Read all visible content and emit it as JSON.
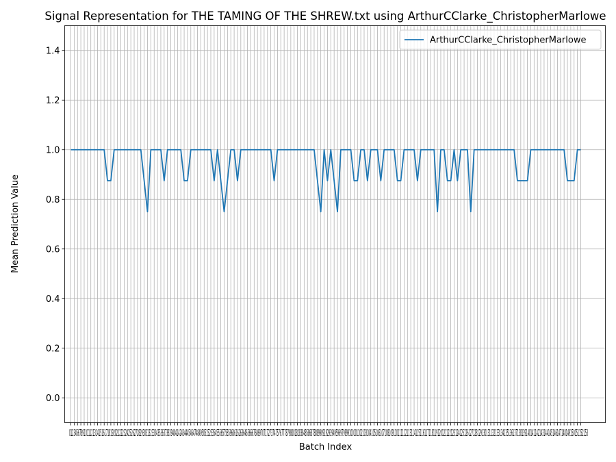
{
  "chart_data": {
    "type": "line",
    "title": "Signal Representation for THE TAMING OF THE SHREW.txt using ArthurCClarke_ChristopherMarlowe",
    "xlabel": "Batch Index",
    "ylabel": "Mean Prediction Value",
    "xlim": [
      0,
      153
    ],
    "ylim": [
      -0.1,
      1.5
    ],
    "yticks": [
      0.0,
      0.2,
      0.4,
      0.6,
      0.8,
      1.0,
      1.2,
      1.4
    ],
    "ytick_labels": [
      "0.0",
      "0.2",
      "0.4",
      "0.6",
      "0.8",
      "1.0",
      "1.2",
      "1.4"
    ],
    "xtick_labels_visible": "0123456789101112131415161718192021222324252627282930313233343536373839404142434445464748495051525354555657585960616263646566676869707172737475767778798081828384858687888990919293949596979899100101102103104105106107108109110111112113114115116117118119120121122123124125126127128129130131132133134135136137138139140141142143144145146147148149150151152153",
    "grid": true,
    "legend_position": "top-right",
    "series": [
      {
        "name": "ArthurCClarke_ChristopherMarlowe",
        "color": "#1f77b4",
        "x": [
          0,
          1,
          2,
          3,
          4,
          5,
          6,
          7,
          8,
          9,
          10,
          11,
          12,
          13,
          14,
          15,
          16,
          17,
          18,
          19,
          20,
          21,
          22,
          23,
          24,
          25,
          26,
          27,
          28,
          29,
          30,
          31,
          32,
          33,
          34,
          35,
          36,
          37,
          38,
          39,
          40,
          41,
          42,
          43,
          44,
          45,
          46,
          47,
          48,
          49,
          50,
          51,
          52,
          53,
          54,
          55,
          56,
          57,
          58,
          59,
          60,
          61,
          62,
          63,
          64,
          65,
          66,
          67,
          68,
          69,
          70,
          71,
          72,
          73,
          74,
          75,
          76,
          77,
          78,
          79,
          80,
          81,
          82,
          83,
          84,
          85,
          86,
          87,
          88,
          89,
          90,
          91,
          92,
          93,
          94,
          95,
          96,
          97,
          98,
          99,
          100,
          101,
          102,
          103,
          104,
          105,
          106,
          107,
          108,
          109,
          110,
          111,
          112,
          113,
          114,
          115,
          116,
          117,
          118,
          119,
          120,
          121,
          122,
          123,
          124,
          125,
          126,
          127,
          128,
          129,
          130,
          131,
          132,
          133,
          134,
          135,
          136,
          137,
          138,
          139,
          140,
          141,
          142,
          143,
          144,
          145,
          146,
          147,
          148,
          149,
          150,
          151,
          152,
          153
        ],
        "values": [
          1,
          1,
          1,
          1,
          1,
          1,
          1,
          1,
          1,
          1,
          1,
          0.875,
          0.875,
          1,
          1,
          1,
          1,
          1,
          1,
          1,
          1,
          1,
          0.875,
          0.75,
          1,
          1,
          1,
          1,
          0.875,
          1,
          1,
          1,
          1,
          1,
          0.875,
          0.875,
          1,
          1,
          1,
          1,
          1,
          1,
          1,
          0.875,
          1,
          0.875,
          0.75,
          0.875,
          1,
          1,
          0.875,
          1,
          1,
          1,
          1,
          1,
          1,
          1,
          1,
          1,
          1,
          0.875,
          1,
          1,
          1,
          1,
          1,
          1,
          1,
          1,
          1,
          1,
          1,
          1,
          0.875,
          0.75,
          1,
          0.875,
          1,
          0.875,
          0.75,
          1,
          1,
          1,
          1,
          0.875,
          0.875,
          1,
          1,
          0.875,
          1,
          1,
          1,
          0.875,
          1,
          1,
          1,
          1,
          0.875,
          0.875,
          1,
          1,
          1,
          1,
          0.875,
          1,
          1,
          1,
          1,
          1,
          0.75,
          1,
          1,
          0.875,
          0.875,
          1,
          0.875,
          1,
          1,
          1,
          0.75,
          1,
          1,
          1,
          1,
          1,
          1,
          1,
          1,
          1,
          1,
          1,
          1,
          1,
          0.875,
          0.875,
          0.875,
          0.875,
          1,
          1,
          1,
          1,
          1,
          1,
          1,
          1,
          1,
          1,
          1,
          0.875,
          0.875,
          0.875,
          1,
          1
        ]
      }
    ]
  }
}
